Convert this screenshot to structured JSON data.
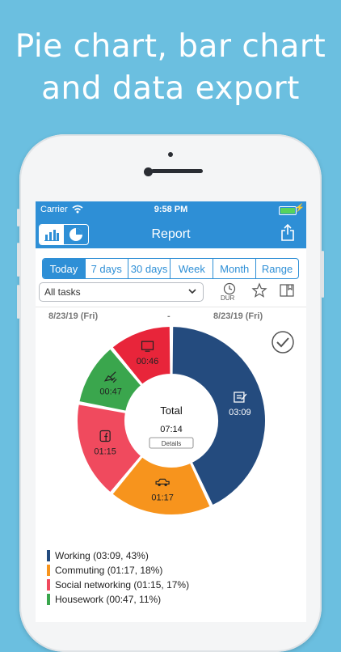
{
  "headline": {
    "line1": "Pie chart, bar chart",
    "line2": "and data export"
  },
  "status": {
    "carrier": "Carrier",
    "time": "9:58 PM",
    "wifi_icon": "wifi-icon",
    "battery_icon": "battery-charging-icon"
  },
  "nav": {
    "title": "Report",
    "bar_chart_icon": "bar-chart-icon",
    "pie_chart_icon": "pie-chart-icon",
    "share_icon": "share-icon"
  },
  "tabs": [
    "Today",
    "7 days",
    "30 days",
    "Week",
    "Month",
    "Range"
  ],
  "active_tab": "Today",
  "filter": {
    "selected": "All tasks",
    "dur_label": "DUR"
  },
  "dates": {
    "start": "8/23/19 (Fri)",
    "separator": "-",
    "end": "8/23/19 (Fri)"
  },
  "center": {
    "total_label": "Total",
    "total_value": "07:14",
    "details_button": "Details"
  },
  "colors": {
    "accent": "#2e8fd6",
    "working": "#244b7e",
    "commuting": "#f7941d",
    "social": "#f04a5e",
    "housework": "#3aa64d",
    "tv": "#e8253a"
  },
  "chart_data": {
    "type": "pie",
    "total": "07:14",
    "series": [
      {
        "name": "Working",
        "duration": "03:09",
        "percent": 43,
        "icon": "edit-icon",
        "color": "#244b7e"
      },
      {
        "name": "Commuting",
        "duration": "01:17",
        "percent": 18,
        "icon": "car-icon",
        "color": "#f7941d"
      },
      {
        "name": "Social networking",
        "duration": "01:15",
        "percent": 17,
        "icon": "facebook-icon",
        "color": "#f04a5e"
      },
      {
        "name": "Housework",
        "duration": "00:47",
        "percent": 11,
        "icon": "cleaning-icon",
        "color": "#3aa64d"
      },
      {
        "name": "",
        "duration": "00:46",
        "percent": 11,
        "icon": "tv-icon",
        "color": "#e8253a"
      }
    ]
  },
  "legend": [
    {
      "text": "Working (03:09, 43%)",
      "color": "#244b7e"
    },
    {
      "text": "Commuting (01:17, 18%)",
      "color": "#f7941d"
    },
    {
      "text": "Social networking (01:15, 17%)",
      "color": "#f04a5e"
    },
    {
      "text": "Housework (00:47, 11%)",
      "color": "#3aa64d"
    }
  ]
}
